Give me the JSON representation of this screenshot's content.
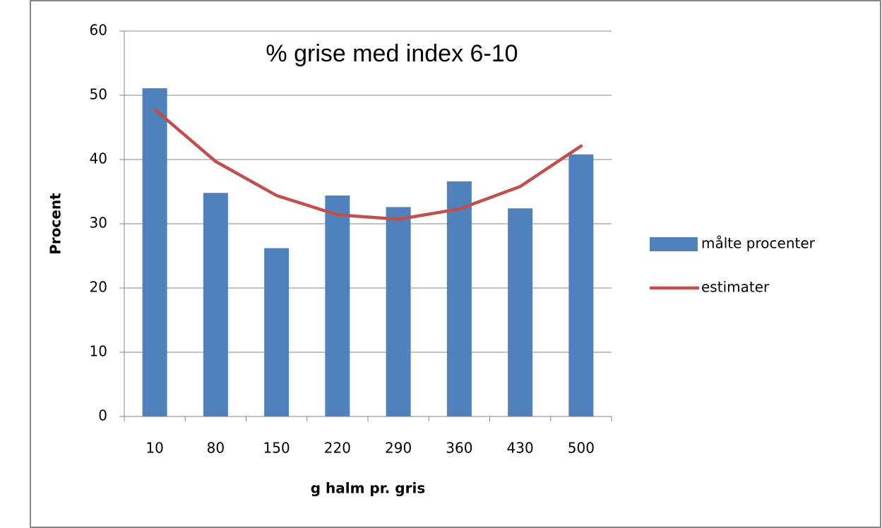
{
  "chart_data": {
    "type": "bar",
    "title": "% grise med index 6-10",
    "x_label": "g halm pr. gris",
    "y_label": "Procent",
    "categories": [
      "10",
      "80",
      "150",
      "220",
      "290",
      "360",
      "430",
      "500"
    ],
    "series": [
      {
        "name": "målte procenter",
        "type": "bar",
        "color": "#4f81bd",
        "values": [
          51.1,
          34.8,
          26.2,
          34.4,
          32.6,
          36.6,
          32.4,
          40.8
        ]
      },
      {
        "name": "estimater",
        "type": "line",
        "color": "#c0504d",
        "values": [
          47.8,
          39.7,
          34.4,
          31.4,
          30.7,
          32.3,
          35.8,
          42.1
        ]
      }
    ],
    "ylim": [
      0,
      60
    ],
    "yticks": [
      0,
      10,
      20,
      30,
      40,
      50,
      60
    ],
    "grid": true,
    "legend": "right"
  }
}
